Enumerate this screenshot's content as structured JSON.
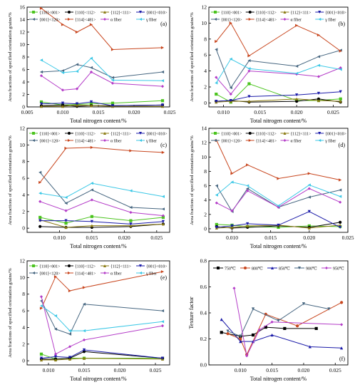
{
  "chart_data": [
    {
      "id": "a",
      "type": "line",
      "panel_label": "(a)",
      "xlabel": "Total nitrogen content/%",
      "ylabel": "Area fractions of specified orientation grains/%",
      "xlim": [
        0.005,
        0.025
      ],
      "ylim": [
        0,
        16
      ],
      "xticks": [
        0.005,
        0.01,
        0.015,
        0.02,
        0.025
      ],
      "xtick_labels": [
        "0.005",
        "0.010",
        "0.015",
        "0.020",
        "0.025"
      ],
      "yticks": [
        0,
        2,
        4,
        6,
        8,
        10,
        12,
        14,
        16
      ],
      "ytick_labels": [
        "0",
        "2",
        "4",
        "6",
        "8",
        "10",
        "12",
        "14",
        "16"
      ],
      "x": [
        0.007,
        0.01,
        0.012,
        0.014,
        0.017,
        0.024
      ],
      "series": [
        {
          "name": "{110}<001>",
          "color": "#4bc41e",
          "marker": "s",
          "values": [
            0.8,
            0.3,
            0.4,
            0.5,
            0.6,
            1.0
          ]
        },
        {
          "name": "{110}<112>",
          "color": "#000000",
          "marker": "o",
          "values": [
            0.2,
            0.3,
            0.1,
            0.2,
            0.2,
            0.3
          ]
        },
        {
          "name": "{112}<111>",
          "color": "#8a7a10",
          "marker": "^",
          "values": [
            0.1,
            0.1,
            0.3,
            0.2,
            0.1,
            0.1
          ]
        },
        {
          "name": "{001}<010>",
          "color": "#1a1aa8",
          "marker": "v",
          "values": [
            0.5,
            0.6,
            0.5,
            0.8,
            0.2,
            0.3
          ]
        },
        {
          "name": "{001}<120>",
          "color": "#466680",
          "marker": "<",
          "values": [
            5.6,
            5.8,
            6.8,
            6.3,
            4.7,
            5.6
          ]
        },
        {
          "name": "{114}<481>",
          "color": "#c8461e",
          "marker": ">",
          "values": [
            15.8,
            13.2,
            12.0,
            13.2,
            9.2,
            9.5
          ]
        },
        {
          "name": "α fiber",
          "color": "#b43cc8",
          "marker": "D",
          "values": [
            5.0,
            2.7,
            2.9,
            5.6,
            3.8,
            3.3
          ]
        },
        {
          "name": "γ fiber",
          "color": "#3cc8e6",
          "marker": "<",
          "values": [
            7.5,
            5.5,
            5.7,
            7.8,
            4.3,
            4.2
          ]
        }
      ]
    },
    {
      "id": "b",
      "type": "line",
      "panel_label": "(b)",
      "xlabel": "Total nitrogen content/%",
      "ylabel": "Area fractions of specified orientation grains/%",
      "xlim": [
        0.008,
        0.027
      ],
      "ylim": [
        -0.5,
        12
      ],
      "xticks": [
        0.01,
        0.015,
        0.02,
        0.025
      ],
      "xtick_labels": [
        "0.010",
        "0.015",
        "0.020",
        "0.025"
      ],
      "yticks": [
        0,
        2,
        4,
        6,
        8,
        10,
        12
      ],
      "ytick_labels": [
        "0",
        "2",
        "4",
        "6",
        "8",
        "10",
        "12"
      ],
      "x": [
        0.009,
        0.011,
        0.0135,
        0.02,
        0.023,
        0.026
      ],
      "series": [
        {
          "name": "{110}<001>",
          "color": "#4bc41e",
          "marker": "s",
          "values": [
            1.1,
            0.1,
            2.4,
            0.3,
            0.3,
            0.5
          ]
        },
        {
          "name": "{110}<112>",
          "color": "#000000",
          "marker": "o",
          "values": [
            0.2,
            0.3,
            0.1,
            0.2,
            0.5,
            0.1
          ]
        },
        {
          "name": "{112}<111>",
          "color": "#8a7a10",
          "marker": "^",
          "values": [
            0.1,
            0.2,
            0.2,
            0.5,
            0.3,
            0.2
          ]
        },
        {
          "name": "{001}<010>",
          "color": "#1a1aa8",
          "marker": "v",
          "values": [
            0.2,
            0.3,
            0.8,
            1.0,
            1.2,
            1.4
          ]
        },
        {
          "name": "{001}<120>",
          "color": "#466680",
          "marker": "<",
          "values": [
            6.7,
            1.9,
            5.3,
            4.6,
            5.8,
            6.6
          ]
        },
        {
          "name": "{114}<481>",
          "color": "#c8461e",
          "marker": ">",
          "values": [
            7.7,
            10.0,
            5.9,
            9.7,
            8.5,
            6.5
          ]
        },
        {
          "name": "α fiber",
          "color": "#b43cc8",
          "marker": "D",
          "values": [
            3.2,
            1.1,
            4.0,
            3.6,
            3.3,
            4.4
          ]
        },
        {
          "name": "γ fiber",
          "color": "#3cc8e6",
          "marker": "<",
          "values": [
            2.5,
            5.5,
            4.3,
            3.7,
            4.7,
            4.2
          ]
        }
      ]
    },
    {
      "id": "c",
      "type": "line",
      "panel_label": "(c)",
      "xlabel": "Total nitrogen content/%",
      "ylabel": "Area fractions of specified orientation grains/%",
      "xlim": [
        0.005,
        0.027
      ],
      "ylim": [
        -0.5,
        12
      ],
      "xticks": [
        0.01,
        0.015,
        0.02,
        0.025
      ],
      "xtick_labels": [
        "0.010",
        "0.015",
        "0.020",
        "0.025"
      ],
      "yticks": [
        0,
        2,
        4,
        6,
        8,
        10,
        12
      ],
      "ytick_labels": [
        "0",
        "2",
        "4",
        "6",
        "8",
        "10",
        "12"
      ],
      "x": [
        0.007,
        0.011,
        0.015,
        0.021,
        0.026
      ],
      "series": [
        {
          "name": "{110}<001>",
          "color": "#4bc41e",
          "marker": "s",
          "values": [
            1.3,
            0.6,
            1.4,
            0.9,
            1.3
          ]
        },
        {
          "name": "{110}<112>",
          "color": "#000000",
          "marker": "o",
          "values": [
            0.2,
            0.1,
            0.1,
            0.2,
            0.5
          ]
        },
        {
          "name": "{112}<111>",
          "color": "#8a7a10",
          "marker": "^",
          "values": [
            1.0,
            0.1,
            0.3,
            0.3,
            0.5
          ]
        },
        {
          "name": "{001}<010>",
          "color": "#1a1aa8",
          "marker": "v",
          "values": [
            0.9,
            0.9,
            0.8,
            0.5,
            0.8
          ]
        },
        {
          "name": "{001}<120>",
          "color": "#466680",
          "marker": "<",
          "values": [
            6.7,
            3.0,
            4.6,
            2.5,
            2.3
          ]
        },
        {
          "name": "{114}<481>",
          "color": "#c8461e",
          "marker": ">",
          "values": [
            5.5,
            9.6,
            9.7,
            9.3,
            9.1
          ]
        },
        {
          "name": "α fiber",
          "color": "#b43cc8",
          "marker": "D",
          "values": [
            3.2,
            2.1,
            3.4,
            1.9,
            1.5
          ]
        },
        {
          "name": "γ fiber",
          "color": "#3cc8e6",
          "marker": "<",
          "values": [
            4.2,
            3.7,
            5.4,
            4.5,
            3.8
          ]
        }
      ]
    },
    {
      "id": "d",
      "type": "line",
      "panel_label": "(d)",
      "xlabel": "Total nitrogen content/%",
      "ylabel": "Area fractions of specified orientation grains/%",
      "xlim": [
        0.007,
        0.025
      ],
      "ylim": [
        -0.5,
        14
      ],
      "xticks": [
        0.01,
        0.015,
        0.02,
        0.025
      ],
      "xtick_labels": [
        "0.010",
        "0.015",
        "0.020",
        "0.025"
      ],
      "yticks": [
        0,
        2,
        4,
        6,
        8,
        10,
        12,
        14
      ],
      "ytick_labels": [
        "0",
        "2",
        "4",
        "6",
        "8",
        "10",
        "12",
        "14"
      ],
      "x": [
        0.008,
        0.01,
        0.012,
        0.016,
        0.02,
        0.024
      ],
      "series": [
        {
          "name": "{110}<001>",
          "color": "#4bc41e",
          "marker": "s",
          "values": [
            0.6,
            0.5,
            0.3,
            0.2,
            0.4,
            0.3
          ]
        },
        {
          "name": "{110}<112>",
          "color": "#000000",
          "marker": "o",
          "values": [
            0.3,
            0.1,
            0.2,
            0.4,
            0.2,
            0.9
          ]
        },
        {
          "name": "{112}<111>",
          "color": "#8a7a10",
          "marker": "^",
          "values": [
            0.1,
            0.2,
            0.4,
            0.5,
            0.1,
            0.5
          ]
        },
        {
          "name": "{001}<010>",
          "color": "#1a1aa8",
          "marker": "v",
          "values": [
            0.2,
            0.4,
            0.7,
            0.5,
            2.4,
            0.2
          ]
        },
        {
          "name": "{001}<120>",
          "color": "#466680",
          "marker": "<",
          "values": [
            6.0,
            2.4,
            5.6,
            3.0,
            4.4,
            5.4
          ]
        },
        {
          "name": "{114}<481>",
          "color": "#c8461e",
          "marker": ">",
          "values": [
            12.3,
            7.7,
            8.9,
            7.0,
            7.7,
            6.8
          ]
        },
        {
          "name": "α fiber",
          "color": "#b43cc8",
          "marker": "D",
          "values": [
            3.6,
            2.5,
            5.3,
            3.0,
            5.6,
            3.7
          ]
        },
        {
          "name": "γ fiber",
          "color": "#3cc8e6",
          "marker": "<",
          "values": [
            4.7,
            6.5,
            6.0,
            3.2,
            6.1,
            4.5
          ]
        }
      ]
    },
    {
      "id": "e",
      "type": "line",
      "panel_label": "(e)",
      "xlabel": "Total nitrogen content/%",
      "ylabel": "Area fractions of specified orientation grains/%",
      "xlim": [
        0.007,
        0.027
      ],
      "ylim": [
        -0.5,
        12
      ],
      "xticks": [
        0.01,
        0.015,
        0.02,
        0.025
      ],
      "xtick_labels": [
        "0.010",
        "0.015",
        "0.020",
        "0.025"
      ],
      "yticks": [
        0,
        2,
        4,
        6,
        8,
        10,
        12
      ],
      "ytick_labels": [
        "0",
        "2",
        "4",
        "6",
        "8",
        "10",
        "12"
      ],
      "x": [
        0.009,
        0.011,
        0.013,
        0.015,
        0.026
      ],
      "series": [
        {
          "name": "{110}<001>",
          "color": "#4bc41e",
          "marker": "s",
          "values": [
            0.8,
            0.2,
            0.3,
            0.3,
            0.3
          ]
        },
        {
          "name": "{110}<112>",
          "color": "#000000",
          "marker": "o",
          "values": [
            0.2,
            0.2,
            0.3,
            1.1,
            0.3
          ]
        },
        {
          "name": "{112}<111>",
          "color": "#8a7a10",
          "marker": "^",
          "values": [
            0.1,
            0.1,
            0.2,
            0.3,
            0.2
          ]
        },
        {
          "name": "{001}<010>",
          "color": "#1a1aa8",
          "marker": "v",
          "values": [
            0.3,
            0.5,
            0.4,
            1.3,
            0.3
          ]
        },
        {
          "name": "{001}<120>",
          "color": "#466680",
          "marker": "<",
          "values": [
            7.2,
            3.8,
            3.2,
            6.8,
            6.0
          ]
        },
        {
          "name": "{114}<481>",
          "color": "#c8461e",
          "marker": ">",
          "values": [
            6.3,
            10.1,
            8.4,
            8.8,
            10.7
          ]
        },
        {
          "name": "α fiber",
          "color": "#b43cc8",
          "marker": "D",
          "values": [
            7.7,
            0.8,
            1.7,
            2.5,
            4.2
          ]
        },
        {
          "name": "γ fiber",
          "color": "#3cc8e6",
          "marker": "<",
          "values": [
            6.6,
            5.4,
            3.6,
            3.6,
            4.7
          ]
        }
      ]
    },
    {
      "id": "f",
      "type": "line",
      "panel_label": "(f)",
      "xlabel": "Total nitrogen content/%",
      "ylabel": "Texture factor",
      "xlim": [
        0.005,
        0.027
      ],
      "ylim": [
        0.0,
        0.8
      ],
      "xticks": [
        0.01,
        0.015,
        0.02,
        0.025
      ],
      "xtick_labels": [
        "0.010",
        "0.015",
        "0.020",
        "0.025"
      ],
      "yticks": [
        0.0,
        0.2,
        0.4,
        0.6,
        0.8
      ],
      "ytick_labels": [
        "0.0",
        "0.2",
        "0.4",
        "0.6",
        "0.8"
      ],
      "series": [
        {
          "name": "750℃",
          "color": "#000000",
          "marker": "s",
          "x": [
            0.007,
            0.01,
            0.012,
            0.014,
            0.017,
            0.022
          ],
          "values": [
            0.25,
            0.22,
            0.23,
            0.29,
            0.28,
            0.28
          ]
        },
        {
          "name": "800℃",
          "color": "#c8461e",
          "marker": "o",
          "x": [
            0.008,
            0.01,
            0.011,
            0.014,
            0.019,
            0.026
          ],
          "values": [
            0.24,
            0.2,
            0.08,
            0.39,
            0.3,
            0.48
          ]
        },
        {
          "name": "850℃",
          "color": "#1a1aa8",
          "marker": "^",
          "x": [
            0.007,
            0.01,
            0.012,
            0.015,
            0.021,
            0.026
          ],
          "values": [
            0.35,
            0.18,
            0.18,
            0.23,
            0.14,
            0.13
          ]
        },
        {
          "name": "900℃",
          "color": "#466680",
          "marker": "v",
          "x": [
            0.008,
            0.01,
            0.012,
            0.016,
            0.02,
            0.024
          ],
          "values": [
            0.26,
            0.22,
            0.43,
            0.34,
            0.47,
            0.43
          ]
        },
        {
          "name": "950℃",
          "color": "#b43cc8",
          "marker": "D",
          "x": [
            0.009,
            0.011,
            0.013,
            0.015,
            0.026
          ],
          "values": [
            0.59,
            0.07,
            0.27,
            0.33,
            0.31
          ]
        }
      ]
    }
  ]
}
